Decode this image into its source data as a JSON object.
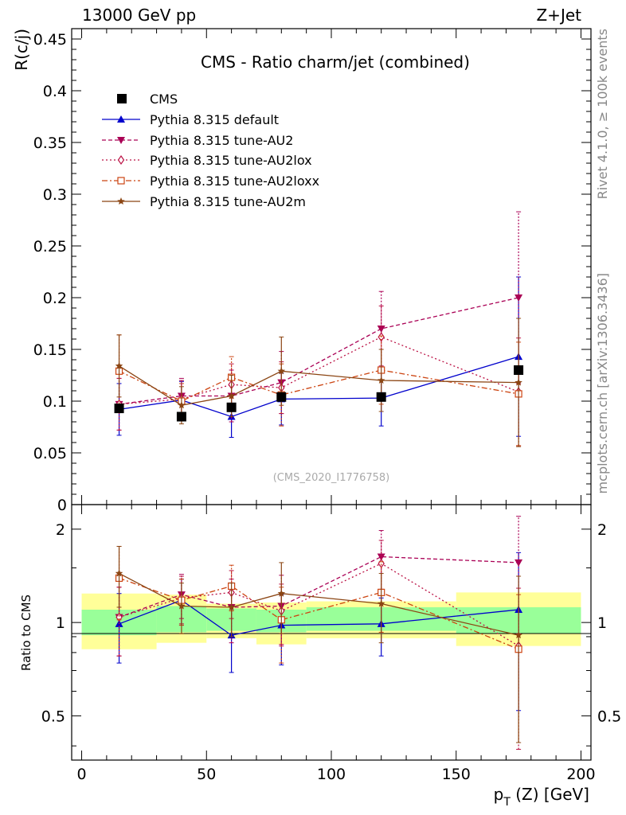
{
  "header": {
    "left": "13000 GeV pp",
    "right": "Z+Jet"
  },
  "side_text": {
    "rivet": "Rivet 4.1.0, ≥ 100k events",
    "mcplots": "mcplots.cern.ch [arXiv:1306.3436]"
  },
  "chart_data": {
    "type": "scatter",
    "title": "CMS - Ratio charm/jet (combined)",
    "analysis_id": "(CMS_2020_I1776758)",
    "ylabel": "R(c/j)",
    "ratio_ylabel": "Ratio to CMS",
    "xlabel_main": "p",
    "xlabel_sub": "T",
    "xlabel_rest": " (Z) [GeV]",
    "xlim": [
      -4,
      204
    ],
    "ylim": [
      0,
      0.46
    ],
    "ratio_ylim": [
      0.36,
      2.4
    ],
    "x_ticks": [
      "0",
      "50",
      "100",
      "150",
      "200"
    ],
    "x_tick_values": [
      0,
      50,
      100,
      150,
      200
    ],
    "y_ticks": [
      "0",
      "0.05",
      "0.1",
      "0.15",
      "0.2",
      "0.25",
      "0.3",
      "0.35",
      "0.4",
      "0.45"
    ],
    "y_tick_values": [
      0,
      0.05,
      0.1,
      0.15,
      0.2,
      0.25,
      0.3,
      0.35,
      0.4,
      0.45
    ],
    "ratio_ticks": [
      "0.5",
      "1",
      "2"
    ],
    "ratio_tick_values": [
      0.5,
      1,
      2
    ],
    "data": {
      "name": "CMS",
      "color": "#000000",
      "x": [
        15,
        40,
        60,
        80,
        120,
        175
      ],
      "y": [
        0.093,
        0.085,
        0.094,
        0.104,
        0.104,
        0.13
      ],
      "bins": [
        [
          0,
          30
        ],
        [
          30,
          50
        ],
        [
          50,
          70
        ],
        [
          70,
          90
        ],
        [
          90,
          150
        ],
        [
          150,
          200
        ]
      ],
      "ratio_band_inner": [
        [
          0.91,
          1.1
        ],
        [
          0.93,
          1.13
        ],
        [
          0.94,
          1.11
        ],
        [
          0.93,
          1.1
        ],
        [
          0.94,
          1.12
        ],
        [
          0.92,
          1.12
        ]
      ],
      "ratio_band_outer": [
        [
          0.82,
          1.24
        ],
        [
          0.86,
          1.23
        ],
        [
          0.89,
          1.15
        ],
        [
          0.85,
          1.16
        ],
        [
          0.89,
          1.17
        ],
        [
          0.84,
          1.25
        ]
      ]
    },
    "series": [
      {
        "name": "Pythia 8.315 default",
        "color": "#0000cc",
        "marker": "triangle-up",
        "dash": "",
        "x": [
          15,
          40,
          60,
          80,
          120,
          175
        ],
        "y": [
          0.092,
          0.101,
          0.085,
          0.102,
          0.103,
          0.143
        ],
        "err": [
          0.025,
          0.018,
          0.02,
          0.025,
          0.027,
          0.077
        ],
        "ratio": [
          0.99,
          1.18,
          0.91,
          0.98,
          0.99,
          1.1
        ],
        "ratio_err": [
          0.25,
          0.2,
          0.22,
          0.25,
          0.21,
          0.58
        ]
      },
      {
        "name": "Pythia 8.315 tune-AU2",
        "color": "#aa0055",
        "marker": "triangle-down",
        "dash": "5,3",
        "x": [
          15,
          40,
          60,
          80,
          120,
          175
        ],
        "y": [
          0.097,
          0.105,
          0.105,
          0.118,
          0.17,
          0.2
        ],
        "err": [
          0.025,
          0.017,
          0.025,
          0.03,
          0.036,
          0.083
        ],
        "ratio": [
          1.04,
          1.23,
          1.12,
          1.13,
          1.63,
          1.56
        ],
        "ratio_err": [
          0.26,
          0.2,
          0.26,
          0.29,
          0.35,
          0.64
        ]
      },
      {
        "name": "Pythia 8.315 tune-AU2lox",
        "color": "#bb1144",
        "marker": "diamond-open",
        "dash": "2,3",
        "x": [
          15,
          40,
          60,
          80,
          120,
          175
        ],
        "y": [
          0.097,
          0.102,
          0.116,
          0.113,
          0.162,
          0.109
        ],
        "err": [
          0.025,
          0.018,
          0.02,
          0.025,
          0.03,
          0.052
        ],
        "ratio": [
          1.04,
          1.2,
          1.25,
          1.09,
          1.55,
          0.84
        ],
        "ratio_err": [
          0.26,
          0.21,
          0.22,
          0.24,
          0.29,
          0.45
        ]
      },
      {
        "name": "Pythia 8.315 tune-AU2loxx",
        "color": "#cc4411",
        "marker": "square-open",
        "dash": "7,3,2,3",
        "x": [
          15,
          40,
          60,
          80,
          120,
          175
        ],
        "y": [
          0.129,
          0.1,
          0.123,
          0.106,
          0.13,
          0.107
        ],
        "err": [
          0.035,
          0.017,
          0.02,
          0.03,
          0.033,
          0.05
        ],
        "ratio": [
          1.39,
          1.18,
          1.31,
          1.02,
          1.25,
          0.82
        ],
        "ratio_err": [
          0.37,
          0.2,
          0.22,
          0.28,
          0.32,
          0.41
        ]
      },
      {
        "name": "Pythia 8.315 tune-AU2m",
        "color": "#8b4513",
        "marker": "star",
        "dash": "",
        "x": [
          15,
          40,
          60,
          80,
          120,
          175
        ],
        "y": [
          0.134,
          0.096,
          0.105,
          0.129,
          0.12,
          0.118
        ],
        "err": [
          0.03,
          0.018,
          0.02,
          0.033,
          0.03,
          0.062
        ],
        "ratio": [
          1.44,
          1.13,
          1.12,
          1.24,
          1.15,
          0.91
        ],
        "ratio_err": [
          0.32,
          0.21,
          0.22,
          0.32,
          0.29,
          0.5
        ]
      }
    ]
  }
}
